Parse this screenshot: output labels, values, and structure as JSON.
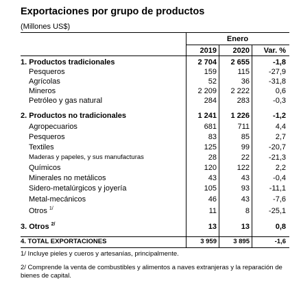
{
  "title": "Exportaciones por grupo de productos",
  "subtitle": "(Millones US$)",
  "period_header": "Enero",
  "columns": [
    "2019",
    "2020",
    "Var. %"
  ],
  "rows": [
    {
      "label": "1.  Productos tradicionales",
      "v2019": "2 704",
      "v2020": "2 655",
      "var": "-1,8",
      "bold": true
    },
    {
      "label": "Pesqueros",
      "v2019": "159",
      "v2020": "115",
      "var": "-27,9"
    },
    {
      "label": "Agrícolas",
      "v2019": "52",
      "v2020": "36",
      "var": "-31,8"
    },
    {
      "label": "Mineros",
      "v2019": "2 209",
      "v2020": "2 222",
      "var": "0,6"
    },
    {
      "label": "Petróleo  y  gas natural",
      "v2019": "284",
      "v2020": "283",
      "var": "-0,3"
    },
    {
      "label": "2.  Productos no tradicionales",
      "v2019": "1 241",
      "v2020": "1 226",
      "var": "-1,2",
      "bold": true
    },
    {
      "label": "Agropecuarios",
      "v2019": "681",
      "v2020": "711",
      "var": "4,4"
    },
    {
      "label": "Pesqueros",
      "v2019": "83",
      "v2020": "85",
      "var": "2,7"
    },
    {
      "label": "Textiles",
      "v2019": "125",
      "v2020": "99",
      "var": "-20,7"
    },
    {
      "label": "Maderas y papeles, y sus manufacturas",
      "v2019": "28",
      "v2020": "22",
      "var": "-21,3"
    },
    {
      "label": "Químicos",
      "v2019": "120",
      "v2020": "122",
      "var": "2,2"
    },
    {
      "label": "Minerales no metálicos",
      "v2019": "43",
      "v2020": "43",
      "var": "-0,4"
    },
    {
      "label": "Sidero-metalúrgicos y joyería",
      "v2019": "105",
      "v2020": "93",
      "var": "-11,1"
    },
    {
      "label": "Metal-mecánicos",
      "v2019": "46",
      "v2020": "43",
      "var": "-7,6"
    },
    {
      "label": "Otros",
      "sup": "1/",
      "v2019": "11",
      "v2020": "8",
      "var": "-25,1"
    },
    {
      "label": "3.  Otros",
      "sup": "2/",
      "v2019": "13",
      "v2020": "13",
      "var": "0,8",
      "bold": true
    },
    {
      "label": "4.  TOTAL EXPORTACIONES",
      "v2019": "3 959",
      "v2020": "3 895",
      "var": "-1,6",
      "bold": true
    }
  ],
  "notes": [
    "1/  Incluye pieles y cueros y artesanías, principalmente.",
    "2/  Comprende la venta de combustibles y alimentos a naves extranjeras y la reparación de bienes de capital."
  ]
}
